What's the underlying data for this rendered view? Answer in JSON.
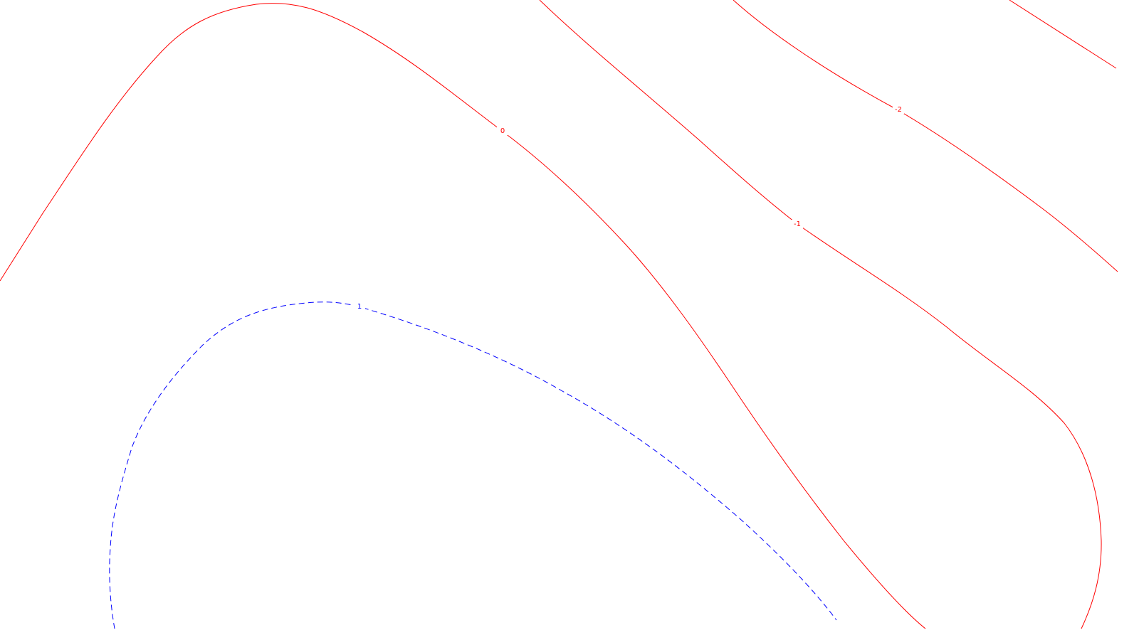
{
  "chart_data": {
    "type": "contour",
    "title": "",
    "xlabel": "",
    "ylabel": "",
    "grid": false,
    "legend": "none",
    "levels": [
      {
        "value": 1,
        "label": "1",
        "color": "#0000ff",
        "dashed": true
      },
      {
        "value": 0,
        "label": "0",
        "color": "#ff0000",
        "dashed": false
      },
      {
        "value": -1,
        "label": "-1",
        "color": "#ff0000",
        "dashed": false
      },
      {
        "value": -2,
        "label": "-2",
        "color": "#ff0000",
        "dashed": false
      }
    ]
  }
}
